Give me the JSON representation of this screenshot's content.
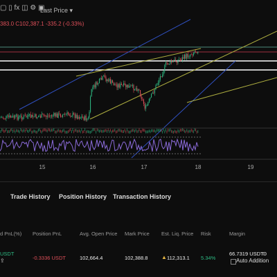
{
  "toolbar": {
    "price_source": "Last Price"
  },
  "chart": {
    "ohlc_line": [
      "383.0",
      "C102,387.1",
      "-335.2 (-0.33%)"
    ],
    "x_axis_labels": [
      "15",
      "16",
      "17",
      "18",
      "19"
    ]
  },
  "tabs": [
    "Trade History",
    "Position History",
    "Transaction History"
  ],
  "table": {
    "headers": [
      "d PnL(%)",
      "Position PnL",
      "Avg. Open Price",
      "Mark Price",
      "Est. Liq. Price",
      "Risk",
      "Margin"
    ],
    "rows": [
      [
        "USDT",
        "-0.3336 USDT",
        "102,664.4",
        "102,388.8",
        "112,313.1",
        "5.34%",
        "66.7319 USDT"
      ]
    ],
    "auto_addition": "Auto Addition"
  }
}
